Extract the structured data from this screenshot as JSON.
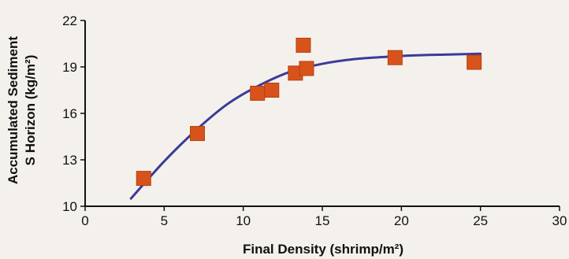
{
  "chart_data": {
    "type": "scatter",
    "xlabel": "Final Density (shrimp/m²)",
    "ylabel_line1": "Accumulated Sediment",
    "ylabel_line2": "S Horizon (kg/m²)",
    "xlim": [
      0,
      30
    ],
    "ylim": [
      10,
      22
    ],
    "xticks": [
      "0",
      "5",
      "10",
      "15",
      "20",
      "25",
      "30"
    ],
    "yticks": [
      "10",
      "13",
      "16",
      "19",
      "22"
    ],
    "grid": false,
    "colors": {
      "marker": "#d8531b",
      "curve": "#3b3a9c",
      "axis": "#111111"
    },
    "series": [
      {
        "values": [
          {
            "x": 3.7,
            "y": 11.8
          },
          {
            "x": 7.1,
            "y": 14.7
          },
          {
            "x": 10.9,
            "y": 17.3
          },
          {
            "x": 11.8,
            "y": 17.5
          },
          {
            "x": 13.3,
            "y": 18.6
          },
          {
            "x": 13.8,
            "y": 20.4
          },
          {
            "x": 14.0,
            "y": 18.9
          },
          {
            "x": 19.6,
            "y": 19.6
          },
          {
            "x": 24.6,
            "y": 19.3
          }
        ]
      }
    ],
    "trend_curve": [
      {
        "x": 2.9,
        "y": 10.5
      },
      {
        "x": 5,
        "y": 12.9
      },
      {
        "x": 7,
        "y": 14.9
      },
      {
        "x": 9,
        "y": 16.6
      },
      {
        "x": 11,
        "y": 17.8
      },
      {
        "x": 13,
        "y": 18.7
      },
      {
        "x": 15,
        "y": 19.2
      },
      {
        "x": 17,
        "y": 19.5
      },
      {
        "x": 19,
        "y": 19.65
      },
      {
        "x": 21,
        "y": 19.75
      },
      {
        "x": 23,
        "y": 19.8
      },
      {
        "x": 25,
        "y": 19.85
      }
    ]
  }
}
